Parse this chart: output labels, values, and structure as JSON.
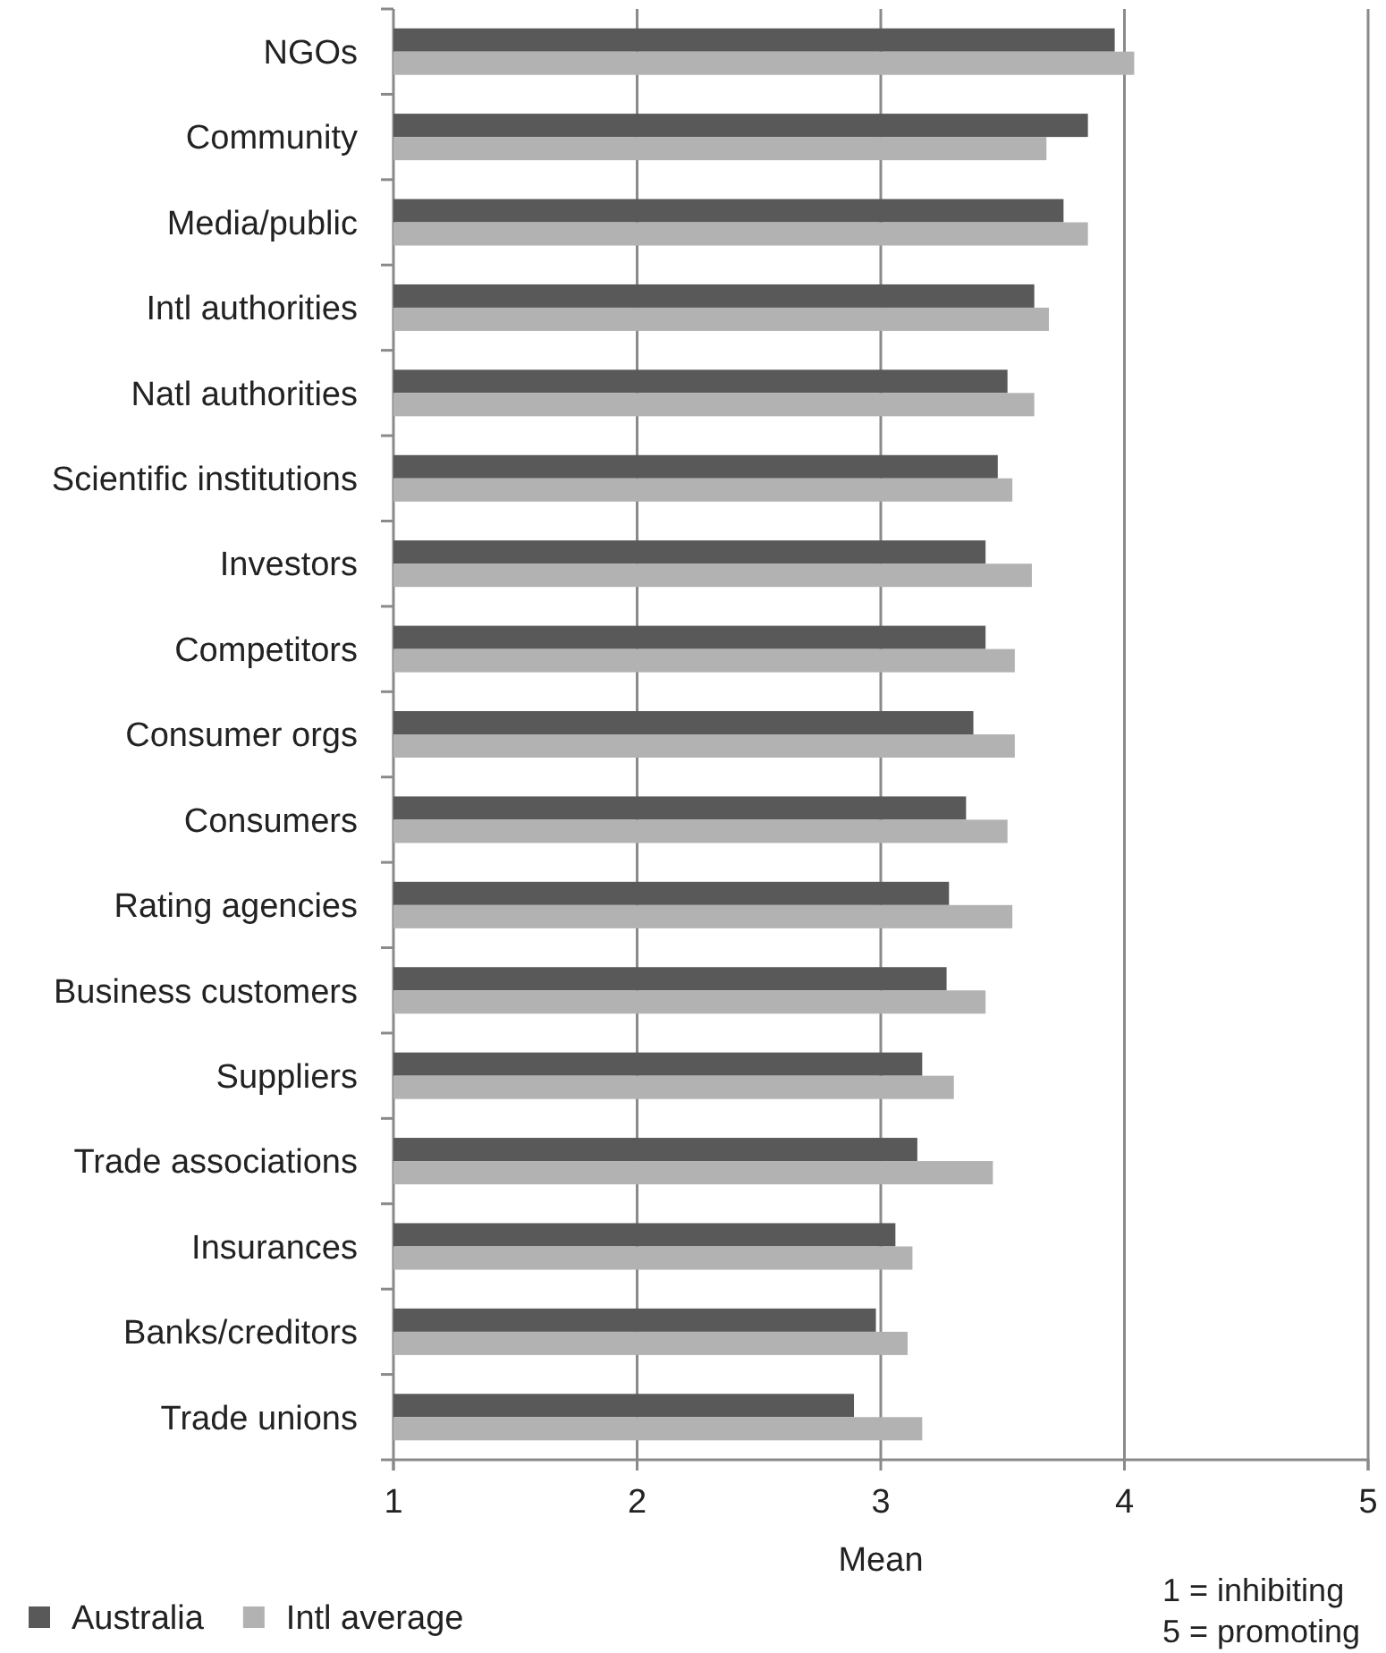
{
  "chart_data": {
    "type": "bar",
    "orientation": "horizontal",
    "categories": [
      "NGOs",
      "Community",
      "Media/public",
      "Intl authorities",
      "Natl authorities",
      "Scientific institutions",
      "Investors",
      "Competitors",
      "Consumer orgs",
      "Consumers",
      "Rating agencies",
      "Business customers",
      "Suppliers",
      "Trade associations",
      "Insurances",
      "Banks/creditors",
      "Trade unions"
    ],
    "series": [
      {
        "name": "Australia",
        "color": "#595959",
        "values": [
          3.96,
          3.85,
          3.75,
          3.63,
          3.52,
          3.48,
          3.43,
          3.43,
          3.38,
          3.35,
          3.28,
          3.27,
          3.17,
          3.15,
          3.06,
          2.98,
          2.89
        ]
      },
      {
        "name": "Intl average",
        "color": "#b2b2b2",
        "values": [
          4.04,
          3.68,
          3.85,
          3.69,
          3.63,
          3.54,
          3.62,
          3.55,
          3.55,
          3.52,
          3.54,
          3.43,
          3.3,
          3.46,
          3.13,
          3.11,
          3.17
        ]
      }
    ],
    "xlabel": "Mean",
    "xlim": [
      1,
      5
    ],
    "xticks": [
      1,
      2,
      3,
      4,
      5
    ],
    "grid": "x",
    "legend": "bottom left",
    "annotations": [
      "1 = inhibiting",
      "5 = promoting"
    ]
  }
}
